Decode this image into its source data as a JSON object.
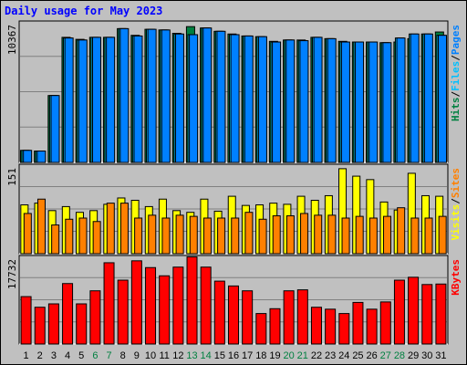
{
  "title": "Daily usage for May 2023",
  "colors": {
    "background": "#c0c0c0",
    "plot_bg": "#c0c0c0",
    "grid": "#808080",
    "hits": "#008040",
    "files": "#00c0ff",
    "pages": "#0080ff",
    "sites": "#ff8000",
    "visits": "#ffff00",
    "kbytes": "#ff0000",
    "weekend_label": "#008040",
    "weekday_label": "#000000"
  },
  "chart_data": [
    {
      "type": "bar",
      "panel": "top",
      "ymax_label": "10367",
      "ylim": [
        0,
        10367
      ],
      "side_labels": [
        "Pages",
        "/",
        "Files",
        "/",
        "Hits"
      ],
      "categories": [
        "1",
        "2",
        "3",
        "4",
        "5",
        "6",
        "7",
        "8",
        "9",
        "10",
        "11",
        "12",
        "13",
        "14",
        "15",
        "16",
        "17",
        "18",
        "19",
        "20",
        "21",
        "22",
        "23",
        "24",
        "25",
        "26",
        "27",
        "28",
        "29",
        "30",
        "31"
      ],
      "series": [
        {
          "name": "Hits",
          "values": [
            900,
            850,
            5000,
            9350,
            9200,
            9350,
            9350,
            10000,
            9500,
            9950,
            9900,
            9650,
            10150,
            10050,
            9800,
            9600,
            9450,
            9400,
            9050,
            9150,
            9150,
            9350,
            9250,
            9050,
            9000,
            9000,
            8950,
            9000,
            9250,
            9600,
            9750
          ]
        },
        {
          "name": "Files",
          "values": [
            900,
            850,
            5000,
            9300,
            9150,
            9350,
            9350,
            10000,
            9450,
            9950,
            9900,
            9600,
            9550,
            10050,
            9800,
            9550,
            9450,
            9400,
            9000,
            9150,
            9100,
            9350,
            9250,
            9000,
            9000,
            9000,
            8950,
            9300,
            9600,
            9600,
            9500
          ]
        },
        {
          "name": "Pages",
          "values": [
            900,
            850,
            5000,
            9300,
            9150,
            9350,
            9350,
            10000,
            9450,
            9950,
            9900,
            9600,
            9550,
            10050,
            9800,
            9550,
            9450,
            9400,
            9000,
            9150,
            9100,
            9350,
            9250,
            9000,
            9000,
            9000,
            8950,
            9300,
            9600,
            9600,
            9500
          ]
        }
      ]
    },
    {
      "type": "bar",
      "panel": "middle",
      "ymax_label": "151",
      "ylim": [
        0,
        151
      ],
      "side_labels": [
        "Sites",
        "/",
        "Visits"
      ],
      "categories": [
        "1",
        "2",
        "3",
        "4",
        "5",
        "6",
        "7",
        "8",
        "9",
        "10",
        "11",
        "12",
        "13",
        "14",
        "15",
        "16",
        "17",
        "18",
        "19",
        "20",
        "21",
        "22",
        "23",
        "24",
        "25",
        "26",
        "27",
        "28",
        "29",
        "30",
        "31"
      ],
      "series": [
        {
          "name": "Visits",
          "values": [
            85,
            88,
            75,
            82,
            72,
            75,
            86,
            97,
            93,
            82,
            95,
            75,
            72,
            95,
            74,
            100,
            84,
            85,
            88,
            86,
            100,
            93,
            101,
            148,
            135,
            129,
            90,
            76,
            140,
            101,
            100
          ]
        },
        {
          "name": "Sites",
          "values": [
            70,
            95,
            50,
            60,
            62,
            56,
            88,
            88,
            62,
            67,
            62,
            67,
            65,
            62,
            62,
            62,
            72,
            60,
            66,
            66,
            70,
            67,
            67,
            62,
            65,
            62,
            65,
            80,
            62,
            62,
            65
          ]
        }
      ]
    },
    {
      "type": "bar",
      "panel": "bottom",
      "ymax_label": "17732",
      "ylim": [
        0,
        17732
      ],
      "side_labels": [
        "KBytes"
      ],
      "categories": [
        "1",
        "2",
        "3",
        "4",
        "5",
        "6",
        "7",
        "8",
        "9",
        "10",
        "11",
        "12",
        "13",
        "14",
        "15",
        "16",
        "17",
        "18",
        "19",
        "20",
        "21",
        "22",
        "23",
        "24",
        "25",
        "26",
        "27",
        "28",
        "29",
        "30",
        "31"
      ],
      "series": [
        {
          "name": "KBytes",
          "values": [
            9800,
            7600,
            8300,
            12500,
            8300,
            11000,
            16800,
            13200,
            17200,
            15800,
            14100,
            15900,
            18000,
            15900,
            13000,
            12000,
            11000,
            6300,
            7300,
            11000,
            11200,
            7600,
            7200,
            6300,
            8600,
            7200,
            8700,
            13200,
            13800,
            12300,
            12400
          ]
        }
      ]
    }
  ],
  "x_labels": [
    "1",
    "2",
    "3",
    "4",
    "5",
    "6",
    "7",
    "8",
    "9",
    "10",
    "11",
    "12",
    "13",
    "14",
    "15",
    "16",
    "17",
    "18",
    "19",
    "20",
    "21",
    "22",
    "23",
    "24",
    "25",
    "26",
    "27",
    "28",
    "29",
    "30",
    "31"
  ],
  "weekend_days": [
    "6",
    "7",
    "13",
    "14",
    "20",
    "21",
    "27",
    "28"
  ]
}
